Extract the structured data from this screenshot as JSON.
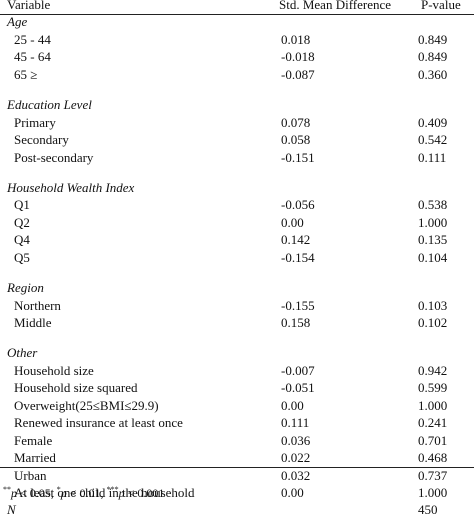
{
  "header": {
    "variable": "Variable",
    "smd": "Std. Mean Difference",
    "pvalue": "P-value"
  },
  "sections": [
    {
      "title": "Age",
      "rows": [
        {
          "label": "25 - 44",
          "smd": "0.018",
          "p": "0.849"
        },
        {
          "label": "45 - 64",
          "smd": "-0.018",
          "p": "0.849"
        },
        {
          "label": "65 ≥",
          "smd": "-0.087",
          "p": "0.360"
        }
      ]
    },
    {
      "title": "Education Level",
      "rows": [
        {
          "label": "Primary",
          "smd": "0.078",
          "p": "0.409"
        },
        {
          "label": "Secondary",
          "smd": "0.058",
          "p": "0.542"
        },
        {
          "label": "Post-secondary",
          "smd": "-0.151",
          "p": "0.111"
        }
      ]
    },
    {
      "title": "Household Wealth Index",
      "rows": [
        {
          "label": "Q1",
          "smd": "-0.056",
          "p": "0.538"
        },
        {
          "label": "Q2",
          "smd": "0.00",
          "p": "1.000"
        },
        {
          "label": "Q4",
          "smd": "0.142",
          "p": "0.135"
        },
        {
          "label": "Q5",
          "smd": "-0.154",
          "p": "0.104"
        }
      ]
    },
    {
      "title": "Region",
      "rows": [
        {
          "label": "Northern",
          "smd": "-0.155",
          "p": "0.103"
        },
        {
          "label": "Middle",
          "smd": "0.158",
          "p": "0.102"
        }
      ]
    },
    {
      "title": "Other",
      "rows": [
        {
          "label": "Household size",
          "smd": "-0.007",
          "p": "0.942"
        },
        {
          "label": "Household size squared",
          "smd": "-0.051",
          "p": "0.599"
        },
        {
          "label": "Overweight(25≤BMI≤29.9)",
          "smd": "0.00",
          "p": "1.000"
        },
        {
          "label": "Renewed insurance at least once",
          "smd": "0.111",
          "p": "0.241"
        },
        {
          "label": "Female",
          "smd": "0.036",
          "p": "0.701"
        },
        {
          "label": "Married",
          "smd": "0.022",
          "p": "0.468"
        },
        {
          "label": "Urban",
          "smd": "0.032",
          "p": "0.737"
        },
        {
          "label": "At least one child in the household",
          "smd": "0.00",
          "p": "1.000"
        }
      ]
    }
  ],
  "n_row": {
    "label": "N",
    "smd": "",
    "p": "450"
  },
  "footnote": {
    "sig1_mark": "**",
    "sig1_text": " < 0.05, ",
    "sig2_mark": "*",
    "sig2_text": " < 0.01, ",
    "sig3_mark": "***",
    "sig3_text": " < 0.001",
    "p_symbol": "p"
  }
}
